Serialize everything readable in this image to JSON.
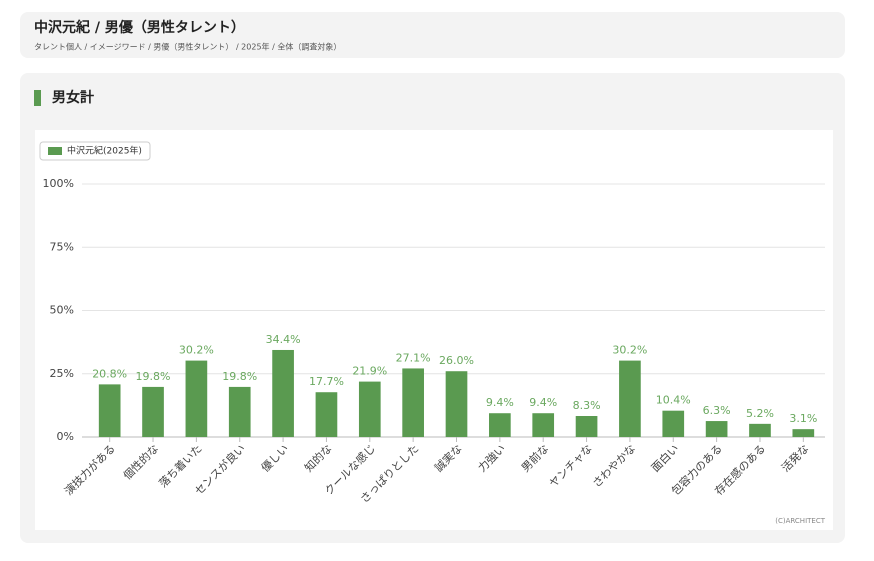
{
  "header": {
    "title": "中沢元紀 / 男優（男性タレント）",
    "breadcrumb": "タレント個人 / イメージワード / 男優（男性タレント） / 2025年 / 全体（調査対象）"
  },
  "section_title": "男女計",
  "chart_data": {
    "type": "bar",
    "categories": [
      "演技力がある",
      "個性的な",
      "落ち着いた",
      "センスが良い",
      "優しい",
      "知的な",
      "クールな感じ",
      "さっぱりとした",
      "誠実な",
      "力強い",
      "男前な",
      "ヤンチャな",
      "さわやかな",
      "面白い",
      "包容力のある",
      "存在感のある",
      "活発な"
    ],
    "series": [
      {
        "name": "中沢元紀(2025年)",
        "color": "#5a9a50",
        "values": [
          20.8,
          19.8,
          30.2,
          19.8,
          34.4,
          17.7,
          21.9,
          27.1,
          26.0,
          9.4,
          9.4,
          8.3,
          30.2,
          10.4,
          6.3,
          5.2,
          3.1
        ],
        "value_labels": [
          "20.8%",
          "19.8%",
          "30.2%",
          "19.8%",
          "34.4%",
          "17.7%",
          "21.9%",
          "27.1%",
          "26.0%",
          "9.4%",
          "9.4%",
          "8.3%",
          "30.2%",
          "10.4%",
          "6.3%",
          "5.2%",
          "3.1%"
        ]
      }
    ],
    "ylim": [
      0,
      100
    ],
    "yticks": [
      {
        "value": 0,
        "label": "0%"
      },
      {
        "value": 25,
        "label": "25%"
      },
      {
        "value": 50,
        "label": "50%"
      },
      {
        "value": 75,
        "label": "75%"
      },
      {
        "value": 100,
        "label": "100%"
      }
    ],
    "grid": true,
    "legend": "top-left",
    "label_color": "#6aa85f"
  },
  "copyright": "(C)ARCHITECT"
}
